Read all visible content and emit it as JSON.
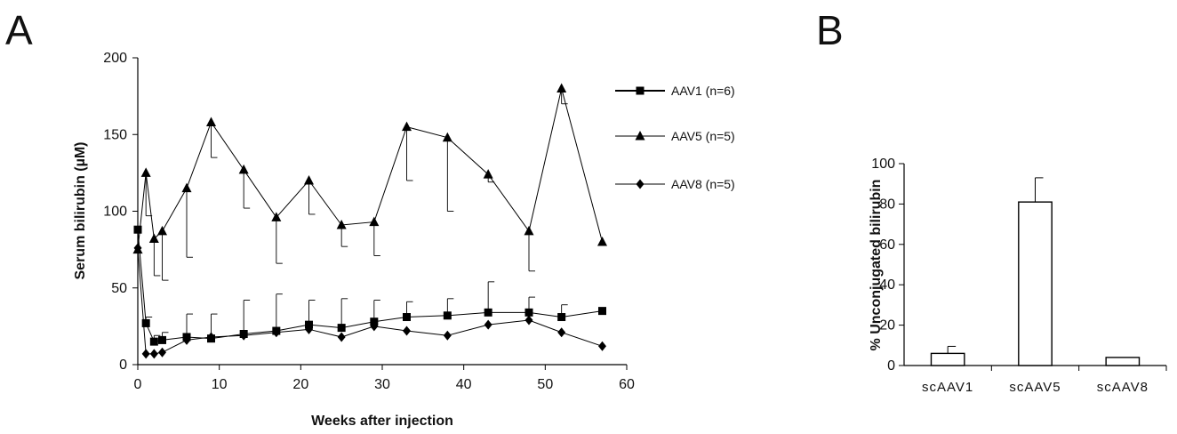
{
  "panels": {
    "a_label": "A",
    "b_label": "B"
  },
  "chart_data": [
    {
      "type": "line",
      "xlabel": "Weeks after injection",
      "ylabel": "Serum bilirubin (µM)",
      "xlim": [
        0,
        60
      ],
      "ylim": [
        0,
        200
      ],
      "xticks": [
        "0",
        "10",
        "20",
        "30",
        "40",
        "50",
        "60"
      ],
      "yticks": [
        "0",
        "50",
        "100",
        "150",
        "200"
      ],
      "grid": false,
      "legend": "right",
      "series": [
        {
          "name": "AAV1 (n=6)",
          "marker": "square",
          "color": "#000000",
          "x": [
            0,
            1,
            2,
            3,
            6,
            9,
            13,
            17,
            21,
            25,
            29,
            33,
            38,
            43,
            48,
            52,
            57
          ],
          "y": [
            88,
            27,
            15,
            16,
            18,
            17,
            20,
            22,
            26,
            24,
            28,
            31,
            32,
            34,
            34,
            31,
            35
          ],
          "error_upper": [
            0,
            4,
            4,
            5,
            15,
            16,
            22,
            24,
            16,
            19,
            14,
            10,
            11,
            20,
            10,
            8,
            0
          ]
        },
        {
          "name": "AAV5 (n=5)",
          "marker": "triangle",
          "color": "#000000",
          "x": [
            0,
            1,
            2,
            3,
            6,
            9,
            13,
            17,
            21,
            25,
            29,
            33,
            38,
            43,
            48,
            52,
            57
          ],
          "y": [
            75,
            125,
            82,
            87,
            115,
            158,
            127,
            96,
            120,
            91,
            93,
            155,
            148,
            124,
            87,
            180,
            80
          ],
          "error_lower": [
            0,
            28,
            24,
            32,
            45,
            23,
            25,
            30,
            22,
            14,
            22,
            35,
            48,
            5,
            26,
            10,
            0
          ]
        },
        {
          "name": "AAV8 (n=5)",
          "marker": "diamond",
          "color": "#000000",
          "x": [
            0,
            1,
            2,
            3,
            6,
            9,
            13,
            17,
            21,
            25,
            29,
            33,
            38,
            43,
            48,
            52,
            57
          ],
          "y": [
            76,
            7,
            7,
            8,
            16,
            18,
            19,
            21,
            23,
            18,
            25,
            22,
            19,
            26,
            29,
            21,
            12
          ],
          "error_upper": [
            0,
            0,
            0,
            0,
            0,
            0,
            0,
            0,
            0,
            0,
            0,
            0,
            0,
            0,
            0,
            0,
            0
          ]
        }
      ]
    },
    {
      "type": "bar",
      "xlabel": "",
      "ylabel": "% Unconjugated bilirubin",
      "ylim": [
        0,
        100
      ],
      "yticks": [
        "0",
        "20",
        "40",
        "60",
        "80",
        "100"
      ],
      "categories": [
        "scAAV1",
        "scAAV5",
        "scAAV8"
      ],
      "values": [
        6,
        81,
        4
      ],
      "error_upper": [
        3.5,
        12,
        0
      ],
      "grid": false,
      "bar_color": "#ffffff",
      "edge_color": "#000000"
    }
  ]
}
